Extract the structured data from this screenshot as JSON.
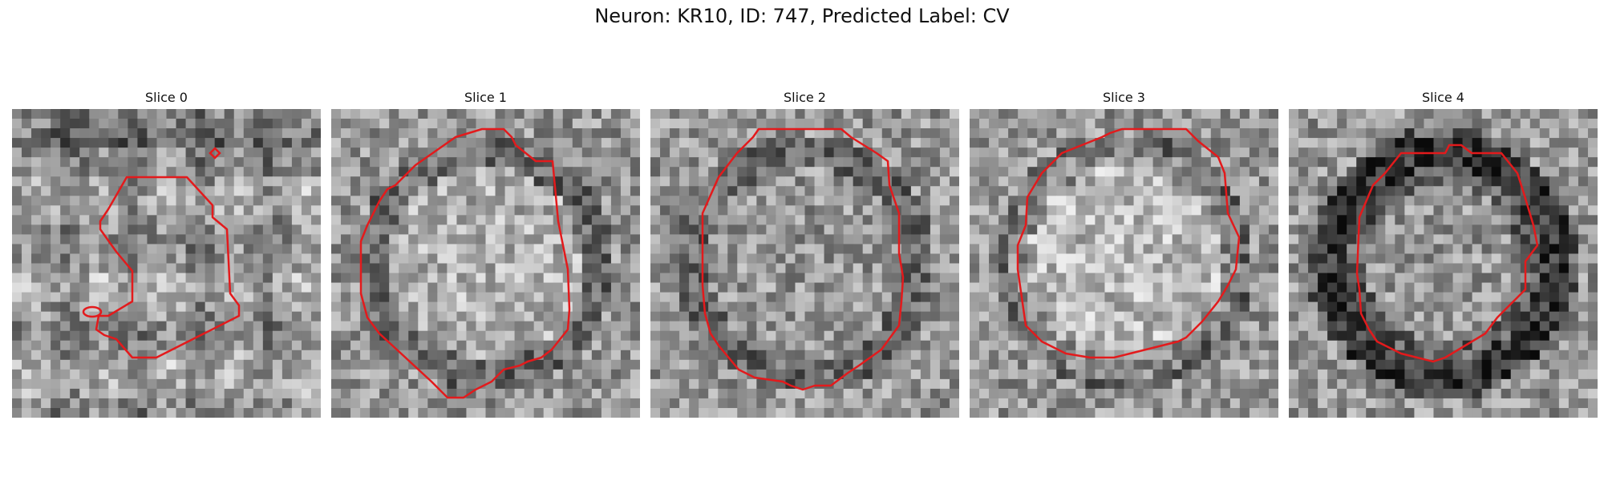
{
  "figure": {
    "title": "Neuron: KR10, ID: 747, Predicted Label: CV"
  },
  "outline_color": "#e31a1c",
  "panels": [
    {
      "title": "Slice 0"
    },
    {
      "title": "Slice 1"
    },
    {
      "title": "Slice 2"
    },
    {
      "title": "Slice 3"
    },
    {
      "title": "Slice 4"
    }
  ]
}
